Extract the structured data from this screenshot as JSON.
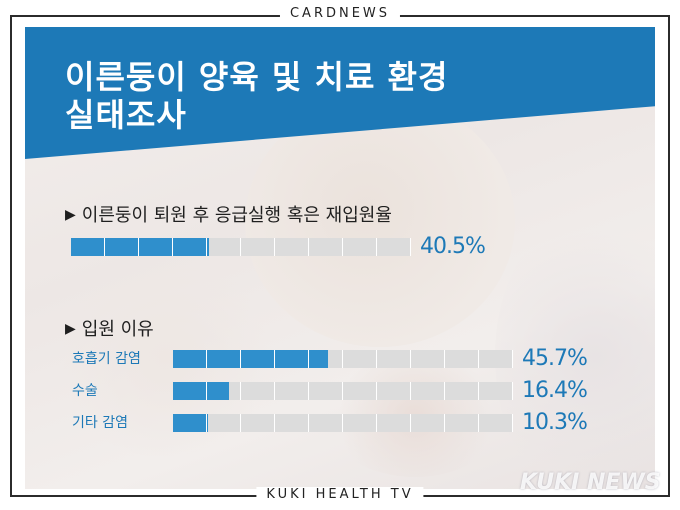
{
  "header_tag": "CARDNEWS",
  "footer_tag": "KUKI HEALTH TV",
  "title_line1": "이른둥이 양육 및 치료 환경",
  "title_line2": "실태조사",
  "section1": {
    "marker": "▶",
    "heading": "이른둥이 퇴원 후 응급실행 혹은 재입원율",
    "value": 40.5,
    "value_label": "40.5%"
  },
  "section2": {
    "marker": "▶",
    "heading": "입원 이유",
    "items": [
      {
        "label": "호흡기 감염",
        "value": 45.7,
        "value_label": "45.7%"
      },
      {
        "label": "수술",
        "value": 16.4,
        "value_label": "16.4%"
      },
      {
        "label": "기타 감염",
        "value": 10.3,
        "value_label": "10.3%"
      }
    ]
  },
  "watermark": "KUKI NEWS",
  "colors": {
    "banner": "#1d79b7",
    "bar_fill": "#2f8fcc",
    "bar_track": "#dcdcdc",
    "value_text": "#1d79b7"
  }
}
